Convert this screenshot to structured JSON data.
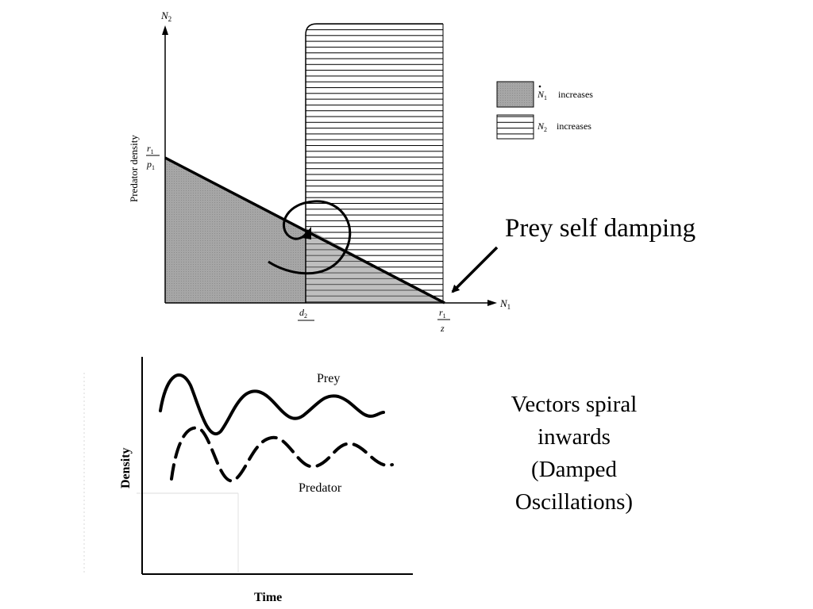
{
  "phase_plane": {
    "y_axis_symbol": "N",
    "y_axis_subscript": "2",
    "x_axis_symbol": "N",
    "x_axis_subscript": "1",
    "y_axis_label": "Predator density",
    "y_intercept_num": "r",
    "y_intercept_num_sub": "1",
    "y_intercept_den": "p",
    "y_intercept_den_sub": "1",
    "d2_symbol": "d",
    "d2_subscript": "2",
    "x_intercept_num": "r",
    "x_intercept_num_sub": "1",
    "x_intercept_den": "z",
    "legend": [
      {
        "symbol": "N",
        "subscript": "1",
        "dot": true,
        "text": "increases",
        "fill": "gray"
      },
      {
        "symbol": "N",
        "subscript": "2",
        "dot": false,
        "text": "increases",
        "fill": "hatched"
      }
    ]
  },
  "annotations": {
    "prey_self_damping": "Prey self damping",
    "damped_lines": [
      "Vectors spiral",
      "inwards",
      "(Damped",
      "Oscillations)"
    ]
  },
  "time_series": {
    "y_axis_label": "Density",
    "x_axis_label": "Time",
    "series": [
      {
        "name": "Prey",
        "style": "solid"
      },
      {
        "name": "Predator",
        "style": "dashed"
      }
    ]
  },
  "colors": {
    "gray_fill": "#a6a6a6",
    "hatch_line": "#000000",
    "ink": "#000000"
  }
}
